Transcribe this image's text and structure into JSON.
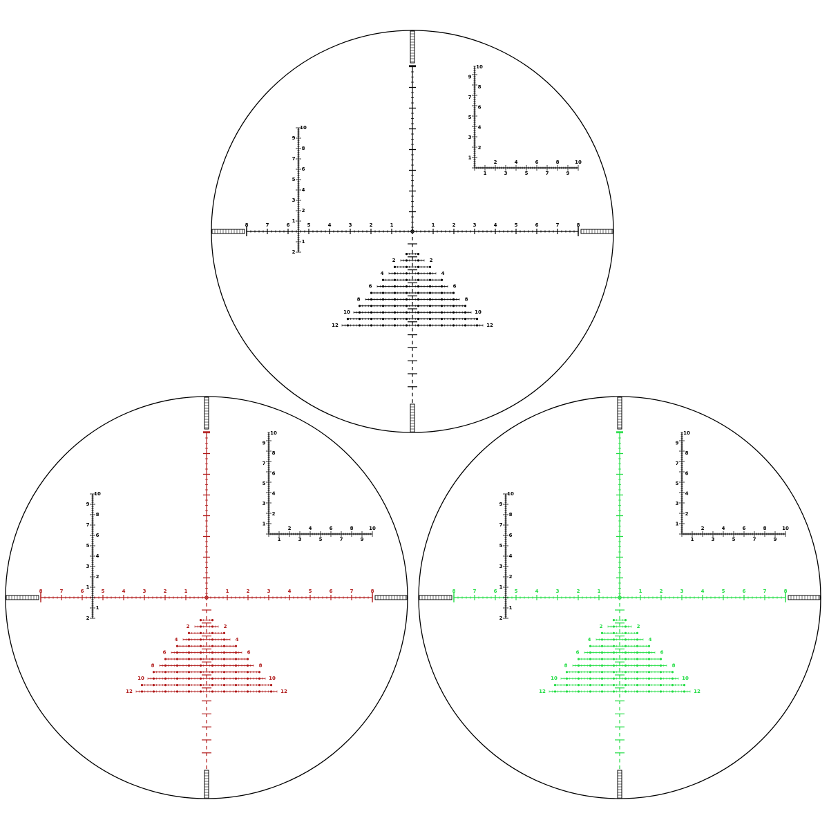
{
  "reticles": [
    {
      "color": "#000000"
    },
    {
      "color": "#b01818"
    },
    {
      "color": "#22dd44"
    }
  ],
  "horizontal_scale": {
    "left": [
      "8",
      "7",
      "6",
      "5",
      "4",
      "3",
      "2",
      "1"
    ],
    "right": [
      "1",
      "2",
      "3",
      "4",
      "5",
      "6",
      "7",
      "8"
    ]
  },
  "vertical_scale": {
    "up": [
      "1",
      "2",
      "3",
      "4",
      "5",
      "6",
      "7",
      "8",
      "9",
      "10"
    ],
    "down": [
      "1",
      "2"
    ]
  },
  "corner_scale": {
    "vertical": [
      "1",
      "2",
      "3",
      "4",
      "5",
      "6",
      "7",
      "8",
      "9",
      "10"
    ],
    "horizontal": [
      "1",
      "2",
      "3",
      "4",
      "5",
      "6",
      "7",
      "8",
      "9",
      "10"
    ]
  },
  "tree": {
    "labels": [
      "2",
      "4",
      "6",
      "8",
      "10",
      "12"
    ]
  }
}
